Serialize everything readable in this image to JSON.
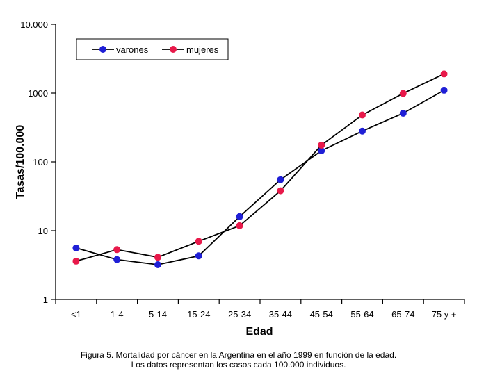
{
  "chart_data": {
    "type": "line",
    "xlabel": "Edad",
    "ylabel": "Tasas/100.000",
    "yscale": "log",
    "ylim": [
      1,
      10000
    ],
    "ytick_labels": [
      "1",
      "10",
      "100",
      "1000",
      "10.000"
    ],
    "ytick_values": [
      1,
      10,
      100,
      1000,
      10000
    ],
    "categories": [
      "<1",
      "1-4",
      "5-14",
      "15-24",
      "25-34",
      "35-44",
      "45-54",
      "55-64",
      "65-74",
      "75 y +"
    ],
    "legend_position": "top-left",
    "grid": false,
    "series": [
      {
        "name": "varones",
        "color": "#1f1fd6",
        "values": [
          5.6,
          3.8,
          3.2,
          4.3,
          16,
          55,
          145,
          280,
          510,
          1100
        ]
      },
      {
        "name": "mujeres",
        "color": "#e8194a",
        "values": [
          3.6,
          5.3,
          4.1,
          7.0,
          11.8,
          38,
          175,
          480,
          990,
          1900
        ]
      }
    ]
  },
  "caption": {
    "line1": "Figura 5. Mortalidad por cáncer en la Argentina en el año 1999 en función de la edad.",
    "line2": "Los datos representan los casos cada 100.000 individuos."
  }
}
